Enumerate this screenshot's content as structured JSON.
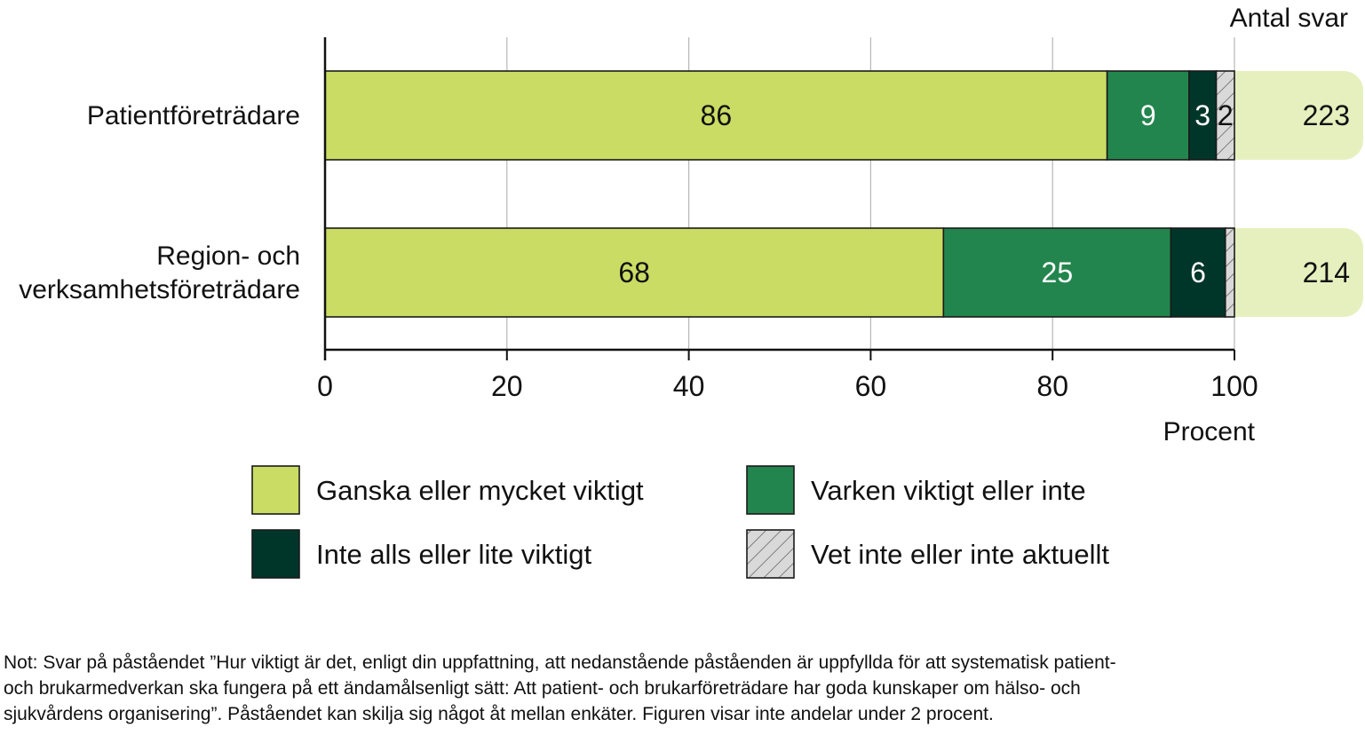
{
  "chart_data": {
    "type": "bar",
    "orientation": "horizontal",
    "stacked": true,
    "categories": [
      [
        "Patientföreträdare"
      ],
      [
        "Region- och",
        "verksamhetsföreträdare"
      ]
    ],
    "series": [
      {
        "name": "Ganska eller mycket viktigt",
        "color": "#cadc64",
        "values": [
          86,
          68
        ],
        "labels": [
          "86",
          "68"
        ],
        "label_color": "#111111"
      },
      {
        "name": "Varken viktigt eller inte",
        "color": "#23854e",
        "values": [
          9,
          25
        ],
        "labels": [
          "9",
          "25"
        ],
        "label_color": "#ffffff"
      },
      {
        "name": "Inte alls eller lite viktigt",
        "color": "#00352a",
        "values": [
          3,
          6
        ],
        "labels": [
          "3",
          "6"
        ],
        "label_color": "#ffffff"
      },
      {
        "name": "Vet inte eller inte aktuellt",
        "color": "#d9d9d9",
        "pattern": "hatched",
        "values": [
          2,
          1
        ],
        "labels": [
          "2",
          ""
        ],
        "label_color": "#111111"
      }
    ],
    "answer_counts_header": "Antal svar",
    "answer_counts": [
      "223",
      "214"
    ],
    "answer_counts_color": "#e6f0bf",
    "xlim": [
      0,
      100
    ],
    "xticks": [
      "0",
      "20",
      "40",
      "60",
      "80",
      "100"
    ],
    "xlabel": "Procent",
    "grid": "vertical",
    "legend_position": "bottom"
  },
  "note_lines": [
    "Not: Svar på påståendet ”Hur viktigt är det, enligt din uppfattning, att nedanstående påståenden är uppfyllda för att systematisk patient-",
    "och brukarmedverkan ska fungera på ett ändamålsenligt sätt: Att patient- och brukarföreträdare har goda kunskaper om hälso- och",
    "sjukvårdens organisering”. Påståendet kan skilja sig något åt mellan enkäter. Figuren visar inte andelar under 2 procent."
  ]
}
